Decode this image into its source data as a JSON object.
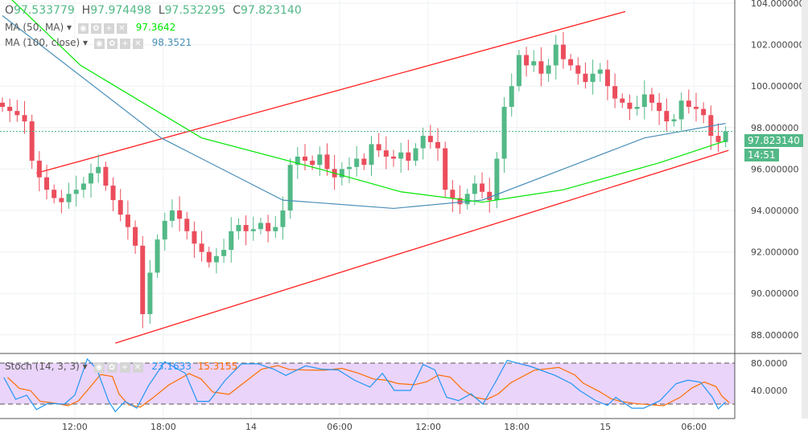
{
  "legend": {
    "open_label": "O",
    "open": "97.533779",
    "high_label": "H",
    "high": "97.974498",
    "low_label": "L",
    "low": "97.532295",
    "close_label": "C",
    "close": "97.823140",
    "ma50_label": "MA (50, MA)",
    "ma50_value": "97.3642",
    "ma100_label": "MA (100, close)",
    "ma100_value": "98.3521",
    "stoch_label": "Stoch (14, 3, 3)",
    "stoch_k": "23.1633",
    "stoch_d": "15.3155"
  },
  "last_price": "97.823140",
  "countdown": "14:51",
  "colors": {
    "up": "#53b987",
    "down": "#eb4d5c",
    "ma50": "#00e600",
    "ma100": "#4a8fb8",
    "trend": "#ff2020",
    "stoch_k": "#2196f3",
    "stoch_d": "#ff6d00",
    "stoch_band": "#e6ccf9"
  },
  "chart_data": [
    {
      "type": "candlestick",
      "title": "",
      "ylim": [
        88,
        104
      ],
      "y_ticks": [
        "104.000000",
        "102.000000",
        "100.000000",
        "98.000000",
        "96.000000",
        "94.000000",
        "92.000000",
        "90.000000",
        "88.000000"
      ],
      "x_ticks": [
        {
          "bar": 9.8,
          "label": "12:00"
        },
        {
          "bar": 21.8,
          "label": "18:00"
        },
        {
          "bar": 33.7,
          "label": "14"
        },
        {
          "bar": 45.7,
          "label": "06:00"
        },
        {
          "bar": 57.7,
          "label": "12:00"
        },
        {
          "bar": 69.7,
          "label": "18:00"
        },
        {
          "bar": 81.7,
          "label": "15"
        },
        {
          "bar": 93.7,
          "label": "06:00"
        }
      ],
      "first_open": 99.2,
      "closes": [
        99.0,
        98.8,
        98.6,
        98.3,
        96.4,
        95.6,
        95.0,
        94.6,
        94.4,
        94.8,
        95.0,
        95.3,
        95.8,
        96.1,
        95.2,
        94.5,
        93.8,
        93.2,
        92.3,
        89.0,
        91.0,
        92.6,
        93.5,
        94.0,
        93.6,
        93.0,
        92.4,
        92.0,
        91.5,
        91.8,
        92.1,
        93.0,
        93.3,
        93.0,
        93.1,
        93.4,
        93.0,
        93.2,
        94.0,
        96.2,
        96.6,
        96.4,
        96.2,
        96.7,
        96.0,
        95.6,
        96.0,
        96.1,
        96.5,
        96.2,
        97.2,
        96.9,
        96.6,
        96.5,
        96.8,
        96.4,
        97.0,
        97.6,
        97.3,
        97.0,
        95.0,
        94.6,
        94.3,
        94.8,
        95.3,
        94.9,
        94.5,
        96.5,
        99.0,
        100.0,
        101.5,
        101.0,
        101.2,
        100.6,
        101.0,
        102.0,
        101.3,
        101.0,
        100.6,
        100.2,
        100.6,
        100.8,
        100.0,
        99.4,
        99.2,
        98.9,
        99.0,
        99.6,
        99.2,
        98.8,
        98.3,
        98.4,
        99.3,
        99.0,
        98.9,
        98.6,
        97.6,
        97.3,
        97.82
      ],
      "ma50": [
        [
          0,
          104.6
        ],
        [
          10.6,
          101
        ],
        [
          27,
          97.5
        ],
        [
          43,
          96
        ],
        [
          54,
          94.9
        ],
        [
          65,
          94.4
        ],
        [
          76,
          95
        ],
        [
          89,
          96.3
        ],
        [
          98,
          97.36
        ]
      ],
      "ma100": [
        [
          0,
          103.4
        ],
        [
          21.5,
          97.5
        ],
        [
          38,
          94.5
        ],
        [
          53,
          94.1
        ],
        [
          65,
          94.5
        ],
        [
          76,
          96
        ],
        [
          87,
          97.5
        ],
        [
          98,
          98.2
        ]
      ],
      "trendlines": [
        [
          [
            4.6,
            95.8
          ],
          [
            84.4,
            103.6
          ]
        ],
        [
          [
            15.3,
            87.6
          ],
          [
            98.4,
            96.9
          ]
        ]
      ]
    },
    {
      "type": "line",
      "title": "Stoch (14, 3, 3)",
      "ylim": [
        0,
        100
      ],
      "y_ticks": [
        "80.0000",
        "40.0000"
      ],
      "bands": [
        20,
        80
      ],
      "k": [
        [
          0.2,
          59
        ],
        [
          1.8,
          27
        ],
        [
          3.3,
          33
        ],
        [
          4.6,
          12
        ],
        [
          6.2,
          21
        ],
        [
          8.4,
          20
        ],
        [
          9.8,
          33
        ],
        [
          11.5,
          86
        ],
        [
          12.8,
          71
        ],
        [
          14.4,
          24
        ],
        [
          15.3,
          9
        ],
        [
          16.6,
          24
        ],
        [
          18.2,
          14
        ],
        [
          19.8,
          47
        ],
        [
          22,
          82
        ],
        [
          24.8,
          65
        ],
        [
          26.4,
          24
        ],
        [
          28,
          24
        ],
        [
          30.2,
          55
        ],
        [
          32.4,
          79
        ],
        [
          34.6,
          79
        ],
        [
          36.8,
          71
        ],
        [
          38.4,
          62
        ],
        [
          41.1,
          76
        ],
        [
          43.3,
          71
        ],
        [
          45.5,
          70
        ],
        [
          47.7,
          55
        ],
        [
          49.8,
          45
        ],
        [
          51.5,
          65
        ],
        [
          53.1,
          40
        ],
        [
          55.3,
          40
        ],
        [
          57,
          78
        ],
        [
          58.6,
          70
        ],
        [
          60.2,
          30
        ],
        [
          61.8,
          25
        ],
        [
          63.5,
          35
        ],
        [
          65.1,
          20
        ],
        [
          66.7,
          50
        ],
        [
          68.4,
          84
        ],
        [
          71.6,
          75
        ],
        [
          74.9,
          62
        ],
        [
          77.1,
          50
        ],
        [
          78.2,
          40
        ],
        [
          80.4,
          25
        ],
        [
          82,
          18
        ],
        [
          83.1,
          30
        ],
        [
          85.3,
          14
        ],
        [
          86.9,
          14
        ],
        [
          89.1,
          25
        ],
        [
          91.3,
          50
        ],
        [
          92.9,
          55
        ],
        [
          94.6,
          52
        ],
        [
          96.2,
          30
        ],
        [
          97,
          13
        ],
        [
          98,
          23.16
        ]
      ]
    }
  ]
}
